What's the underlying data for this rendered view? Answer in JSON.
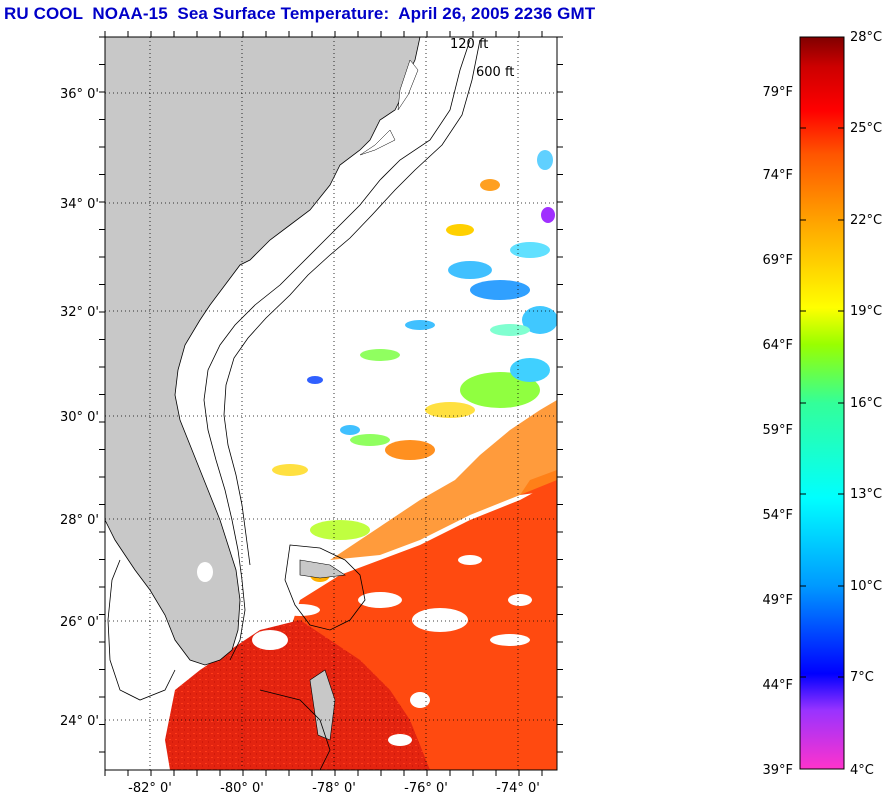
{
  "title": "RU COOL  NOAA-15  Sea Surface Temperature:  April 26, 2005 2236 GMT",
  "map": {
    "lat_labels": [
      "36° 0'",
      "34° 0'",
      "32° 0'",
      "30° 0'",
      "28° 0'",
      "26° 0'",
      "24° 0'"
    ],
    "lon_labels": [
      "-82° 0'",
      "-80° 0'",
      "-78° 0'",
      "-76° 0'",
      "-74° 0'"
    ],
    "lat_range": [
      23.0,
      37.2
    ],
    "lon_range": [
      -83.0,
      -72.8
    ],
    "contours": [
      "120 ft",
      "600 ft"
    ],
    "colors": {
      "land": "#c8c8c8",
      "ocean_cloud": "#ffffff",
      "gridline": "#000000"
    }
  },
  "colorbar": {
    "celsius": [
      "28°C",
      "25°C",
      "22°C",
      "19°C",
      "16°C",
      "13°C",
      "10°C",
      "7°C",
      "4°C"
    ],
    "fahrenheit": [
      "79°F",
      "74°F",
      "69°F",
      "64°F",
      "59°F",
      "54°F",
      "49°F",
      "44°F",
      "39°F"
    ],
    "range_c": [
      4,
      28
    ],
    "stops": [
      "#ff33cc",
      "#9933ff",
      "#0000ff",
      "#0099ff",
      "#00ffff",
      "#33ff99",
      "#99ff00",
      "#ffff00",
      "#ffaa00",
      "#ff5500",
      "#ff0000",
      "#cc0000",
      "#800000"
    ]
  }
}
